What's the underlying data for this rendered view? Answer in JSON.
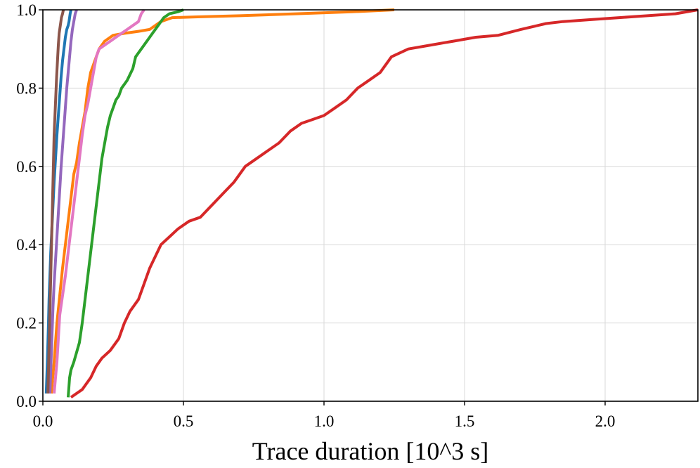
{
  "chart_data": {
    "type": "line",
    "title": "",
    "xlabel": "Trace duration [10^3 s]",
    "ylabel": "",
    "xlim": [
      0.0,
      2.33
    ],
    "ylim": [
      0.0,
      1.0
    ],
    "grid": true,
    "legend": "none",
    "x_ticks": [
      0.0,
      0.5,
      1.0,
      1.5,
      2.0
    ],
    "x_tick_labels": [
      "0.0",
      "0.5",
      "1.0",
      "1.5",
      "2.0"
    ],
    "y_ticks": [
      0.0,
      0.2,
      0.4,
      0.6,
      0.8,
      1.0
    ],
    "y_tick_labels": [
      "0.0",
      "0.2",
      "0.4",
      "0.6",
      "0.8",
      "1.0"
    ],
    "series": [
      {
        "name": "series-blue",
        "color": "#1f77b4",
        "x": [
          0.012,
          0.014,
          0.016,
          0.018,
          0.02,
          0.022,
          0.025,
          0.028,
          0.032,
          0.036,
          0.04,
          0.045,
          0.05,
          0.055,
          0.06,
          0.065,
          0.07,
          0.075,
          0.08,
          0.085,
          0.09,
          0.093,
          0.097,
          0.1
        ],
        "y": [
          0.02,
          0.06,
          0.1,
          0.15,
          0.2,
          0.26,
          0.32,
          0.38,
          0.44,
          0.5,
          0.56,
          0.62,
          0.68,
          0.73,
          0.78,
          0.83,
          0.87,
          0.9,
          0.93,
          0.95,
          0.96,
          0.97,
          0.99,
          1.0
        ]
      },
      {
        "name": "series-orange",
        "color": "#ff7f0e",
        "x": [
          0.03,
          0.035,
          0.04,
          0.045,
          0.05,
          0.06,
          0.07,
          0.08,
          0.09,
          0.1,
          0.11,
          0.12,
          0.13,
          0.14,
          0.15,
          0.16,
          0.17,
          0.18,
          0.19,
          0.2,
          0.22,
          0.25,
          0.29,
          0.34,
          0.38,
          0.42,
          0.46,
          0.55,
          0.7,
          0.9,
          1.1,
          1.25
        ],
        "y": [
          0.02,
          0.06,
          0.1,
          0.15,
          0.2,
          0.27,
          0.34,
          0.4,
          0.46,
          0.52,
          0.58,
          0.61,
          0.66,
          0.7,
          0.74,
          0.8,
          0.84,
          0.86,
          0.88,
          0.9,
          0.92,
          0.935,
          0.94,
          0.945,
          0.95,
          0.97,
          0.98,
          0.982,
          0.985,
          0.99,
          0.995,
          1.0
        ]
      },
      {
        "name": "series-green",
        "color": "#2ca02c",
        "x": [
          0.09,
          0.092,
          0.095,
          0.1,
          0.11,
          0.13,
          0.14,
          0.15,
          0.16,
          0.17,
          0.18,
          0.19,
          0.2,
          0.21,
          0.22,
          0.23,
          0.24,
          0.25,
          0.26,
          0.27,
          0.28,
          0.3,
          0.32,
          0.33,
          0.35,
          0.37,
          0.39,
          0.41,
          0.43,
          0.45,
          0.48,
          0.5
        ],
        "y": [
          0.01,
          0.03,
          0.06,
          0.08,
          0.1,
          0.15,
          0.2,
          0.26,
          0.32,
          0.38,
          0.44,
          0.5,
          0.56,
          0.62,
          0.66,
          0.7,
          0.73,
          0.75,
          0.77,
          0.78,
          0.8,
          0.82,
          0.85,
          0.88,
          0.9,
          0.92,
          0.94,
          0.96,
          0.98,
          0.99,
          0.995,
          1.0
        ]
      },
      {
        "name": "series-red",
        "color": "#d62728",
        "x": [
          0.1,
          0.14,
          0.17,
          0.19,
          0.21,
          0.24,
          0.27,
          0.29,
          0.31,
          0.34,
          0.36,
          0.38,
          0.42,
          0.45,
          0.48,
          0.52,
          0.56,
          0.6,
          0.64,
          0.68,
          0.72,
          0.76,
          0.8,
          0.84,
          0.88,
          0.92,
          0.96,
          1.0,
          1.04,
          1.08,
          1.12,
          1.16,
          1.2,
          1.24,
          1.3,
          1.38,
          1.46,
          1.54,
          1.62,
          1.7,
          1.79,
          1.85,
          1.95,
          2.05,
          2.15,
          2.25,
          2.33
        ],
        "y": [
          0.01,
          0.03,
          0.06,
          0.09,
          0.11,
          0.13,
          0.16,
          0.2,
          0.23,
          0.26,
          0.3,
          0.34,
          0.4,
          0.42,
          0.44,
          0.46,
          0.47,
          0.5,
          0.53,
          0.56,
          0.6,
          0.62,
          0.64,
          0.66,
          0.69,
          0.71,
          0.72,
          0.73,
          0.75,
          0.77,
          0.8,
          0.82,
          0.84,
          0.88,
          0.9,
          0.91,
          0.92,
          0.93,
          0.935,
          0.95,
          0.965,
          0.97,
          0.975,
          0.98,
          0.985,
          0.99,
          1.0
        ]
      },
      {
        "name": "series-purple",
        "color": "#9467bd",
        "x": [
          0.025,
          0.027,
          0.03,
          0.033,
          0.036,
          0.04,
          0.045,
          0.05,
          0.055,
          0.06,
          0.065,
          0.07,
          0.075,
          0.08,
          0.085,
          0.09,
          0.095,
          0.1,
          0.105,
          0.11,
          0.115,
          0.12
        ],
        "y": [
          0.02,
          0.06,
          0.12,
          0.18,
          0.24,
          0.3,
          0.36,
          0.42,
          0.48,
          0.54,
          0.6,
          0.65,
          0.7,
          0.75,
          0.8,
          0.84,
          0.88,
          0.92,
          0.95,
          0.97,
          0.99,
          1.0
        ]
      },
      {
        "name": "series-brown",
        "color": "#8c564b",
        "x": [
          0.018,
          0.02,
          0.022,
          0.024,
          0.026,
          0.028,
          0.03,
          0.032,
          0.034,
          0.036,
          0.038,
          0.04,
          0.043,
          0.046,
          0.049,
          0.052,
          0.055,
          0.058,
          0.062,
          0.066,
          0.07,
          0.073
        ],
        "y": [
          0.02,
          0.08,
          0.14,
          0.2,
          0.26,
          0.32,
          0.38,
          0.44,
          0.5,
          0.56,
          0.62,
          0.68,
          0.73,
          0.78,
          0.83,
          0.87,
          0.91,
          0.94,
          0.96,
          0.98,
          0.99,
          1.0
        ]
      },
      {
        "name": "series-pink",
        "color": "#e377c2",
        "x": [
          0.04,
          0.045,
          0.05,
          0.055,
          0.06,
          0.07,
          0.08,
          0.09,
          0.1,
          0.11,
          0.12,
          0.13,
          0.14,
          0.15,
          0.16,
          0.17,
          0.18,
          0.19,
          0.2,
          0.22,
          0.24,
          0.26,
          0.28,
          0.3,
          0.32,
          0.34,
          0.35,
          0.36
        ],
        "y": [
          0.02,
          0.06,
          0.1,
          0.16,
          0.22,
          0.27,
          0.32,
          0.38,
          0.44,
          0.5,
          0.56,
          0.62,
          0.68,
          0.73,
          0.76,
          0.8,
          0.84,
          0.88,
          0.9,
          0.91,
          0.92,
          0.93,
          0.94,
          0.95,
          0.96,
          0.97,
          0.99,
          1.0
        ]
      }
    ]
  }
}
